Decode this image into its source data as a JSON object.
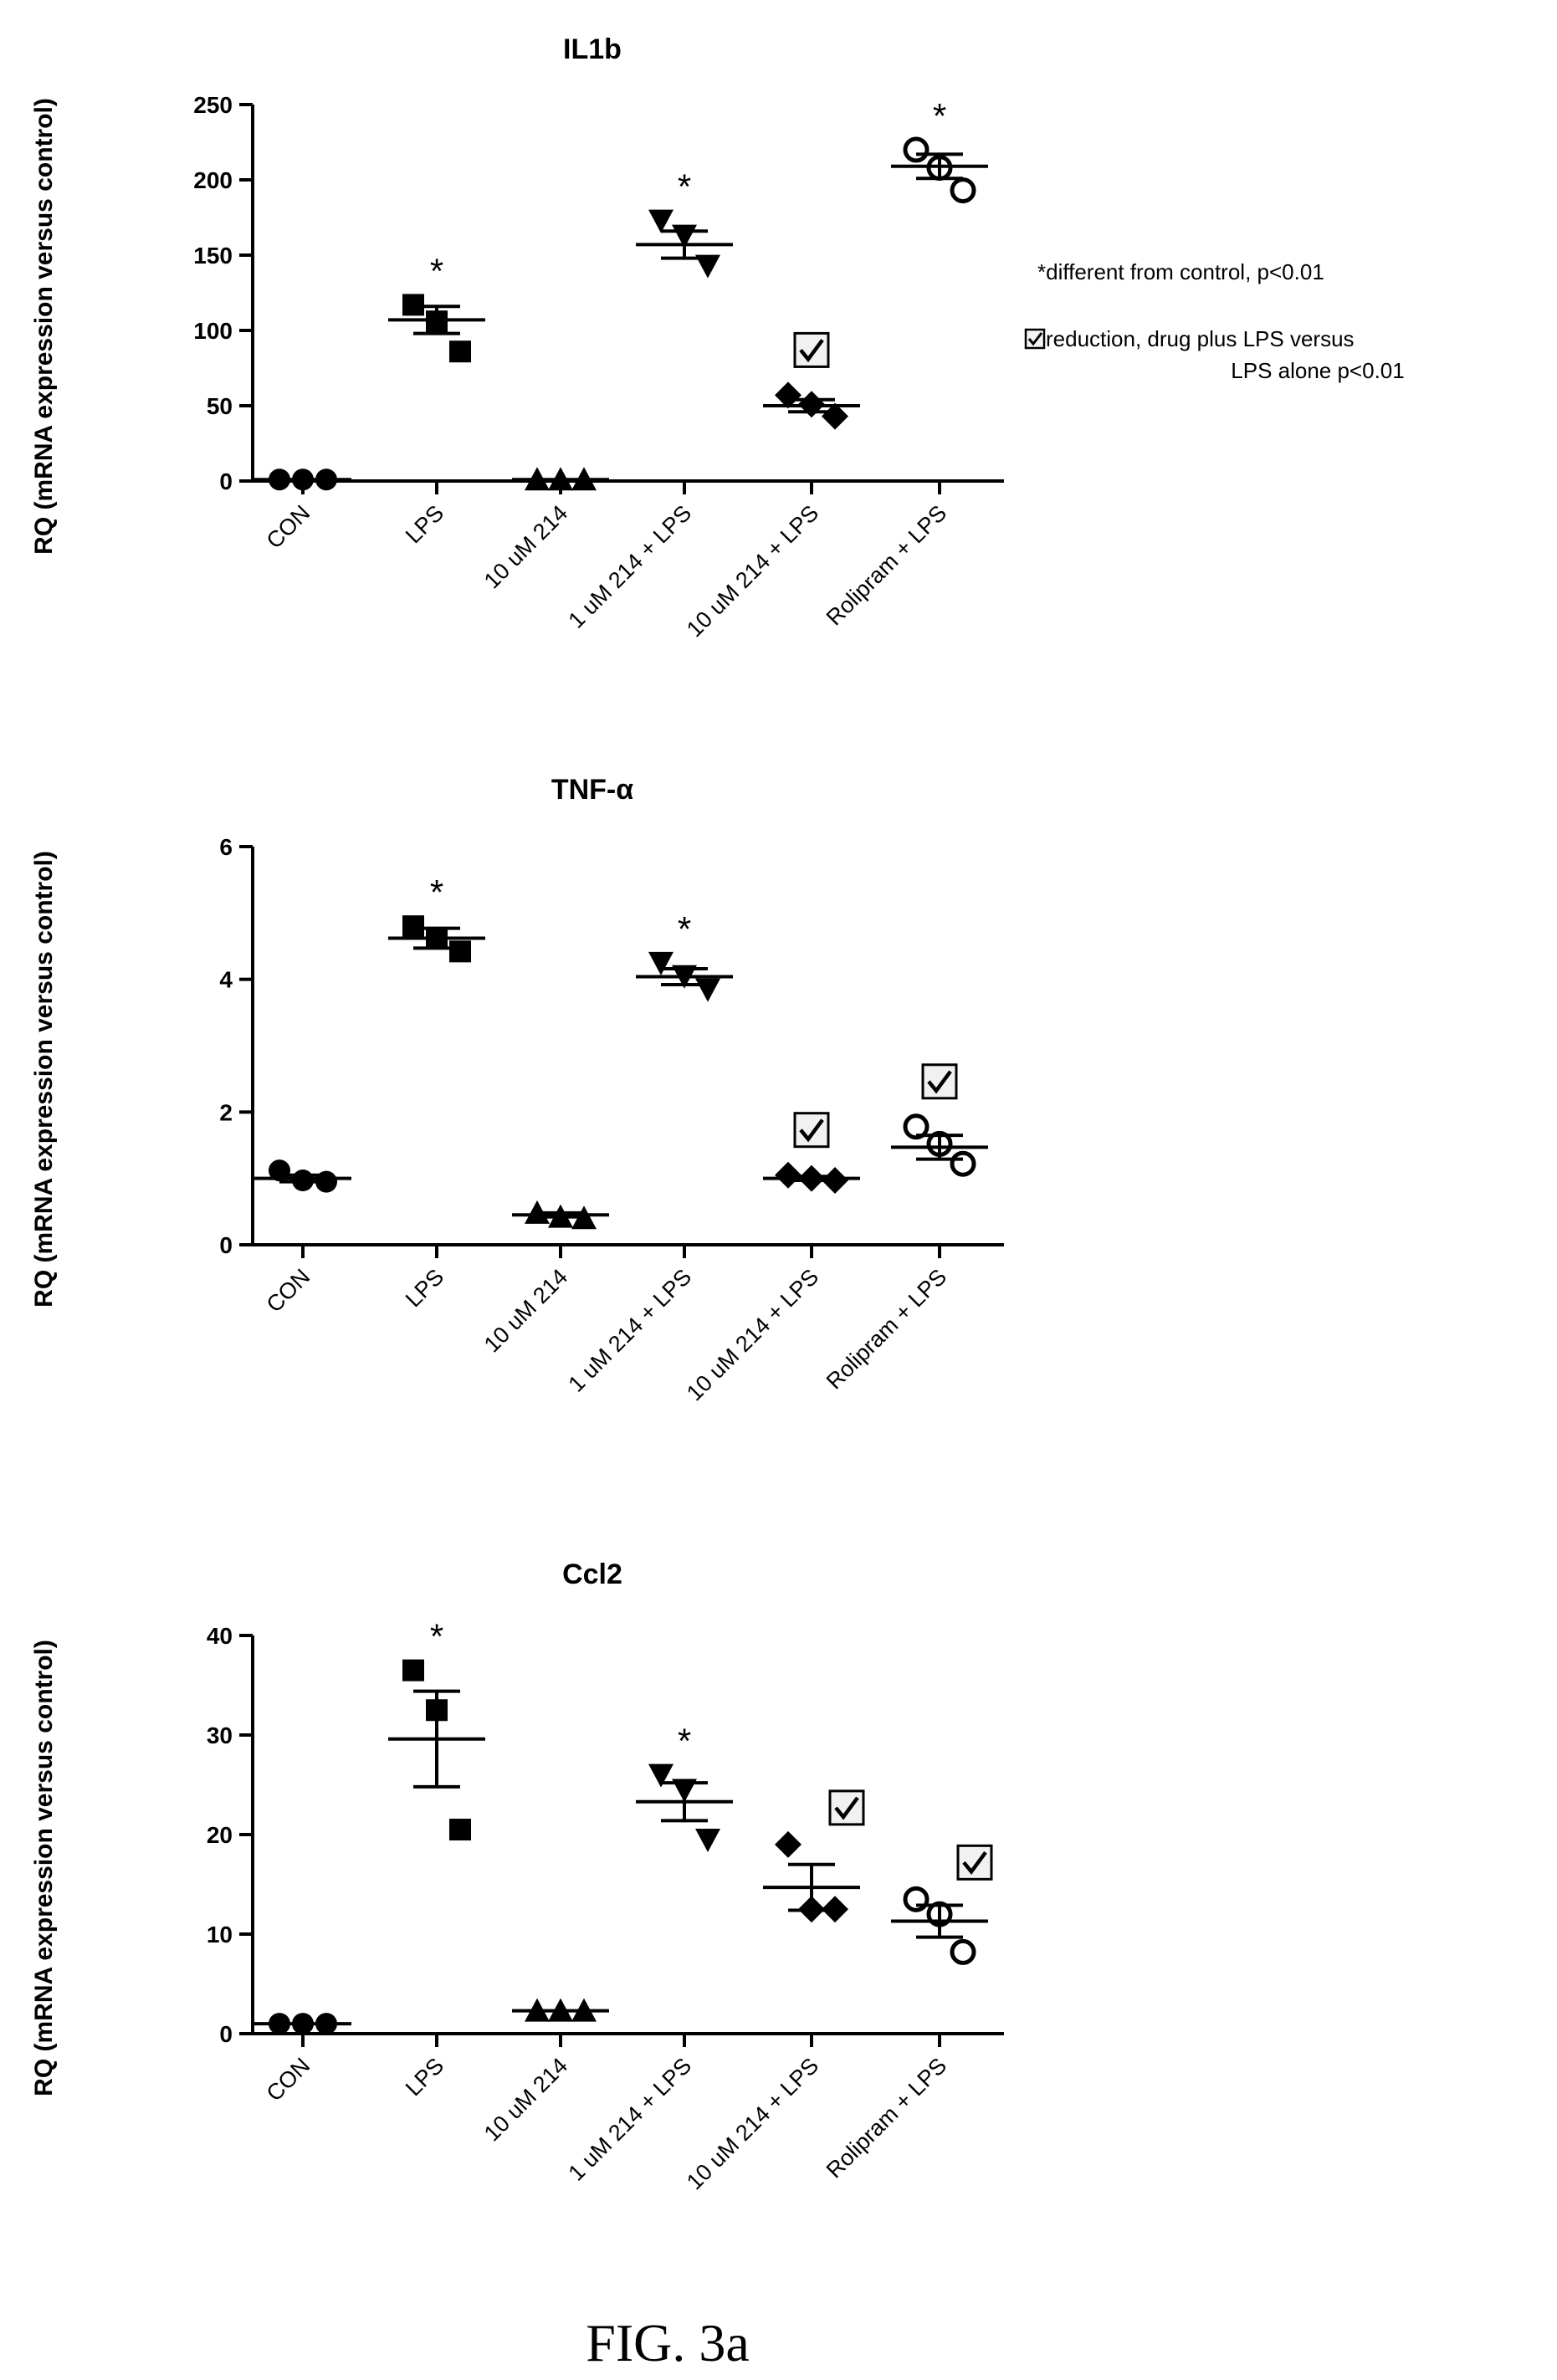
{
  "figure": {
    "caption": "FIG. 3a",
    "legend": {
      "star_text": "*different from control, p<0.01",
      "check_text_line1": "reduction, drug plus LPS versus",
      "check_text_line2": "LPS alone p<0.01"
    }
  },
  "chart_data": [
    {
      "type": "scatter",
      "title": "IL1b",
      "ylabel": "RQ (mRNA expression versus control)",
      "ylim": [
        0,
        250
      ],
      "yticks": [
        0,
        50,
        100,
        150,
        200,
        250
      ],
      "categories": [
        "CON",
        "LPS",
        "10 uM 214",
        "1 uM 214 + LPS",
        "10 uM 214 + LPS",
        "Rolipram + LPS"
      ],
      "markers": [
        "circle",
        "square",
        "triangle",
        "triangle-down",
        "diamond",
        "open-circle"
      ],
      "points": [
        [
          1,
          1,
          1
        ],
        [
          117,
          106,
          86
        ],
        [
          1,
          1,
          1
        ],
        [
          173,
          163,
          143
        ],
        [
          57,
          51,
          43
        ],
        [
          220,
          208,
          193
        ]
      ],
      "mean": [
        1,
        107,
        1,
        157,
        50,
        209
      ],
      "sem": [
        0.3,
        9,
        0.3,
        9,
        4,
        8
      ],
      "annotations": [
        "",
        "*",
        "",
        "*",
        "check",
        "*"
      ]
    },
    {
      "type": "scatter",
      "title": "TNF-α",
      "ylabel": "RQ (mRNA expression versus control)",
      "ylim": [
        0,
        6
      ],
      "yticks": [
        0,
        2,
        4,
        6
      ],
      "categories": [
        "CON",
        "LPS",
        "10 uM 214",
        "1 uM 214 + LPS",
        "10 uM 214 + LPS",
        "Rolipram + LPS"
      ],
      "markers": [
        "circle",
        "square",
        "triangle",
        "triangle-down",
        "diamond",
        "open-circle"
      ],
      "points": [
        [
          1.12,
          0.97,
          0.95
        ],
        [
          4.8,
          4.62,
          4.42
        ],
        [
          0.48,
          0.42,
          0.4
        ],
        [
          4.25,
          4.05,
          3.85
        ],
        [
          1.05,
          1.0,
          0.97
        ],
        [
          1.78,
          1.52,
          1.22
        ]
      ],
      "mean": [
        1.0,
        4.62,
        0.45,
        4.04,
        1.0,
        1.47
      ],
      "sem": [
        0.05,
        0.15,
        0.03,
        0.12,
        0.03,
        0.18
      ],
      "annotations": [
        "",
        "*",
        "",
        "*",
        "check",
        "check"
      ]
    },
    {
      "type": "scatter",
      "title": "Ccl2",
      "ylabel": "RQ (mRNA expression versus control)",
      "ylim": [
        0,
        40
      ],
      "yticks": [
        0,
        10,
        20,
        30,
        40
      ],
      "categories": [
        "CON",
        "LPS",
        "10 uM 214",
        "1 uM 214 + LPS",
        "10 uM 214 + LPS",
        "Rolipram + LPS"
      ],
      "markers": [
        "circle",
        "square",
        "triangle",
        "triangle-down",
        "diamond",
        "open-circle"
      ],
      "points": [
        [
          1,
          1,
          1
        ],
        [
          36.5,
          32.5,
          20.5
        ],
        [
          2.3,
          2.3,
          2.3
        ],
        [
          26,
          24.5,
          19.5
        ],
        [
          19,
          12.5,
          12.5
        ],
        [
          13.5,
          12,
          8.2
        ]
      ],
      "mean": [
        1,
        29.6,
        2.3,
        23.3,
        14.7,
        11.3
      ],
      "sem": [
        0.05,
        4.8,
        0.05,
        1.9,
        2.3,
        1.6
      ],
      "annotations": [
        "",
        "*",
        "",
        "*",
        "check",
        "check"
      ]
    }
  ]
}
